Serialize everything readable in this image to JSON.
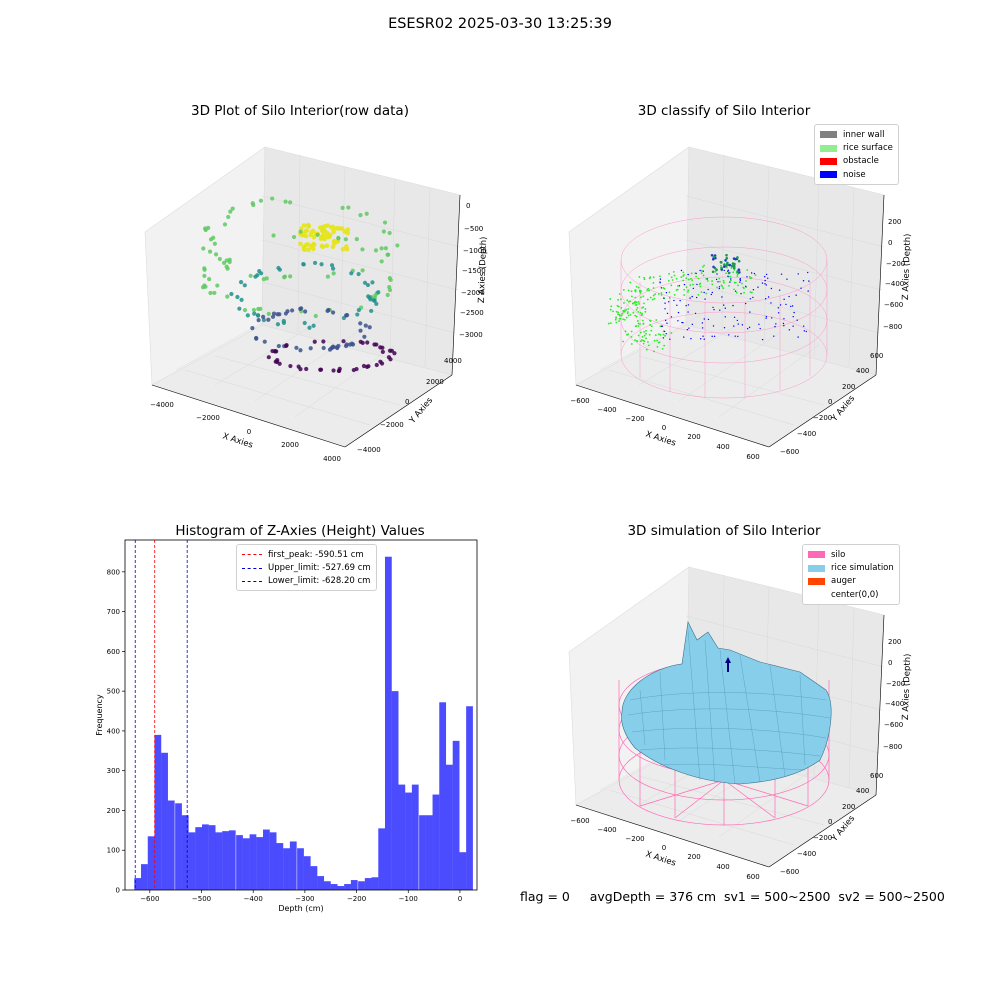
{
  "figure": {
    "suptitle": "ESESR02 2025-03-30 13:25:39",
    "footer": "flag = 0     avgDepth = 376 cm  sv1 = 500~2500  sv2 = 500~2500"
  },
  "panels": {
    "raw": {
      "title": "3D Plot of Silo Interior(row data)",
      "xlabel": "X Axies",
      "ylabel": "Y Axies",
      "zlabel": "Z Axies (Depth)",
      "xticks": [
        "−4000",
        "−2000",
        "0",
        "2000",
        "4000"
      ],
      "yticks": [
        "−4000",
        "−2000",
        "0",
        "2000",
        "4000"
      ],
      "zticks": [
        "0",
        "−500",
        "−1000",
        "−1500",
        "−2000",
        "−2500",
        "−3000"
      ],
      "colormap": "viridis"
    },
    "classify": {
      "title": "3D classify of Silo Interior",
      "xlabel": "X Axies",
      "ylabel": "Y Axies",
      "zlabel": "Z Axies (Depth)",
      "xticks": [
        "−600",
        "−400",
        "−200",
        "0",
        "200",
        "400",
        "600"
      ],
      "yticks": [
        "−600",
        "−400",
        "−200",
        "0",
        "200",
        "400",
        "600"
      ],
      "zticks": [
        "200",
        "0",
        "−200",
        "−400",
        "−600",
        "−800"
      ],
      "legend": [
        {
          "label": "inner wall",
          "color": "#808080"
        },
        {
          "label": "rice surface",
          "color": "#90ee90"
        },
        {
          "label": "obstacle",
          "color": "#ff0000"
        },
        {
          "label": "noise",
          "color": "#0000ff"
        }
      ]
    },
    "simulation": {
      "title": "3D simulation of Silo Interior",
      "xlabel": "X Axies",
      "ylabel": "Y Axies",
      "zlabel": "Z Axies (Depth)",
      "xticks": [
        "−600",
        "−400",
        "−200",
        "0",
        "200",
        "400",
        "600"
      ],
      "yticks": [
        "−600",
        "−400",
        "−200",
        "0",
        "200",
        "400",
        "600"
      ],
      "zticks": [
        "200",
        "0",
        "−200",
        "−400",
        "−600",
        "−800"
      ],
      "legend": [
        {
          "label": "silo",
          "color": "#ff69b4"
        },
        {
          "label": "rice simulation",
          "color": "#87ceeb"
        },
        {
          "label": "auger",
          "color": "#ff4500"
        },
        {
          "label": "center(0,0)",
          "color": "#ffffff"
        }
      ]
    }
  },
  "chart_data": {
    "type": "bar",
    "title": "Histogram of Z-Axies (Height) Values",
    "xlabel": "Depth (cm)",
    "ylabel": "Frequency",
    "xlim": [
      -648,
      33
    ],
    "ylim": [
      0,
      880
    ],
    "xticks": [
      -600,
      -500,
      -400,
      -300,
      -200,
      -100,
      0
    ],
    "yticks": [
      0,
      100,
      200,
      300,
      400,
      500,
      600,
      700,
      800
    ],
    "bin_width": 13.1,
    "color": "#0000ff",
    "bins": [
      {
        "left": -630,
        "value": 30
      },
      {
        "left": -617,
        "value": 65
      },
      {
        "left": -604,
        "value": 135
      },
      {
        "left": -591,
        "value": 390
      },
      {
        "left": -578,
        "value": 345
      },
      {
        "left": -565,
        "value": 225
      },
      {
        "left": -551,
        "value": 218
      },
      {
        "left": -538,
        "value": 188
      },
      {
        "left": -525,
        "value": 145
      },
      {
        "left": -512,
        "value": 158
      },
      {
        "left": -499,
        "value": 165
      },
      {
        "left": -486,
        "value": 163
      },
      {
        "left": -473,
        "value": 145
      },
      {
        "left": -460,
        "value": 148
      },
      {
        "left": -447,
        "value": 150
      },
      {
        "left": -433,
        "value": 138
      },
      {
        "left": -420,
        "value": 130
      },
      {
        "left": -407,
        "value": 140
      },
      {
        "left": -394,
        "value": 133
      },
      {
        "left": -381,
        "value": 152
      },
      {
        "left": -368,
        "value": 145
      },
      {
        "left": -355,
        "value": 118
      },
      {
        "left": -342,
        "value": 105
      },
      {
        "left": -329,
        "value": 122
      },
      {
        "left": -315,
        "value": 105
      },
      {
        "left": -302,
        "value": 85
      },
      {
        "left": -289,
        "value": 60
      },
      {
        "left": -276,
        "value": 35
      },
      {
        "left": -263,
        "value": 22
      },
      {
        "left": -250,
        "value": 15
      },
      {
        "left": -237,
        "value": 10
      },
      {
        "left": -224,
        "value": 15
      },
      {
        "left": -211,
        "value": 25
      },
      {
        "left": -197,
        "value": 22
      },
      {
        "left": -184,
        "value": 30
      },
      {
        "left": -171,
        "value": 32
      },
      {
        "left": -158,
        "value": 155
      },
      {
        "left": -145,
        "value": 838
      },
      {
        "left": -132,
        "value": 500
      },
      {
        "left": -119,
        "value": 265
      },
      {
        "left": -106,
        "value": 245
      },
      {
        "left": -93,
        "value": 265
      },
      {
        "left": -79,
        "value": 188
      },
      {
        "left": -66,
        "value": 188
      },
      {
        "left": -53,
        "value": 240
      },
      {
        "left": -40,
        "value": 472
      },
      {
        "left": -27,
        "value": 315
      },
      {
        "left": -14,
        "value": 375
      },
      {
        "left": -1,
        "value": 95
      },
      {
        "left": 12,
        "value": 462
      }
    ],
    "vlines": [
      {
        "x": -590.51,
        "color": "#ff0000",
        "label": "first_peak: -590.51 cm"
      },
      {
        "x": -527.69,
        "color": "#0000cc",
        "label": "Upper_limit: -527.69 cm"
      },
      {
        "x": -628.2,
        "color": "#0000cc",
        "label": "Lower_limit: -628.20 cm"
      }
    ]
  }
}
